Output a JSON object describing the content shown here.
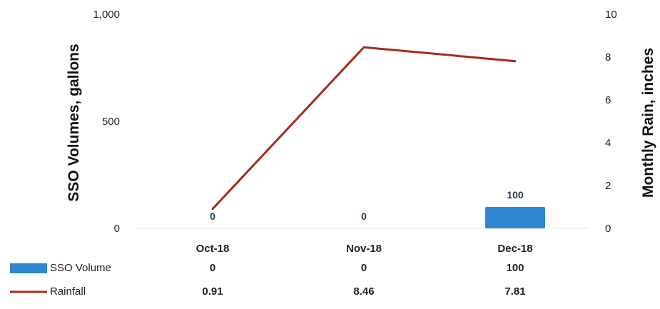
{
  "chart_data": {
    "type": "bar+line",
    "categories": [
      "Oct-18",
      "Nov-18",
      "Dec-18"
    ],
    "series": [
      {
        "name": "SSO Volume",
        "kind": "bar",
        "axis": "left",
        "values": [
          0,
          0,
          100
        ],
        "color": "#2e86d1"
      },
      {
        "name": "Rainfall",
        "kind": "line",
        "axis": "right",
        "values": [
          0.91,
          8.46,
          7.81
        ],
        "color": "#a52a1f"
      }
    ],
    "data_labels": [
      "0",
      "0",
      "100"
    ],
    "y_left": {
      "label": "SSO Volumes, gallons",
      "ticks": [
        "0",
        "500",
        "1,000"
      ],
      "lim": [
        0,
        1000
      ]
    },
    "y_right": {
      "label": "Monthly Rain, inches",
      "ticks": [
        "0",
        "2",
        "4",
        "6",
        "8",
        "10"
      ],
      "lim": [
        0,
        10
      ]
    },
    "table": {
      "rows": [
        {
          "series": "SSO Volume",
          "values": [
            "0",
            "0",
            "100"
          ]
        },
        {
          "series": "Rainfall",
          "values": [
            "0.91",
            "8.46",
            "7.81"
          ]
        }
      ]
    },
    "legend": "data-table-left",
    "grid": false
  }
}
